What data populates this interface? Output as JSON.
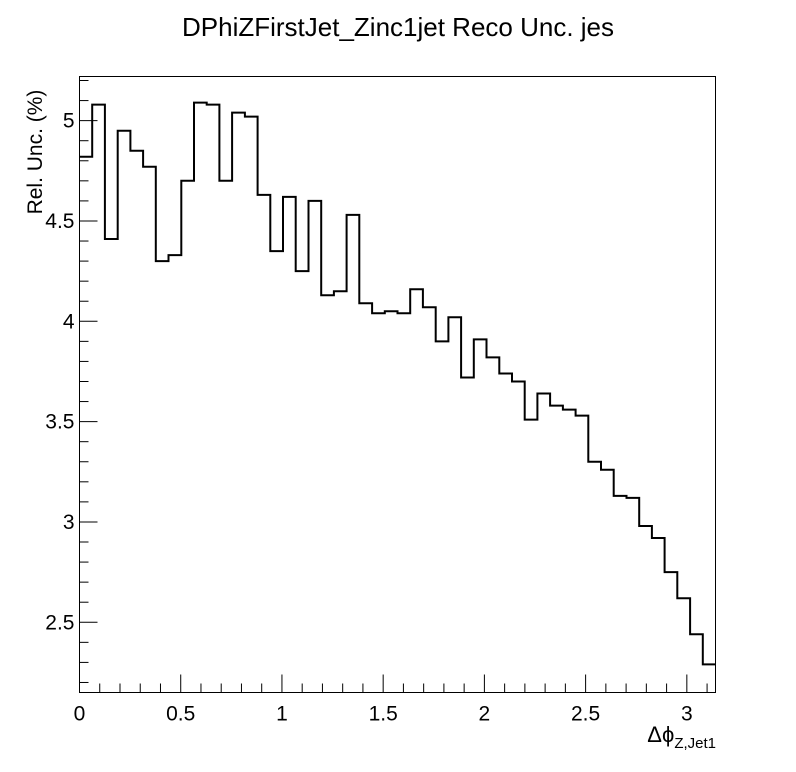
{
  "chart_data": {
    "type": "step-histogram",
    "title": "DPhiZFirstJet_Zinc1jet Reco Unc. jes",
    "xlabel_main": "Δϕ",
    "xlabel_sub": "Z,Jet1",
    "ylabel": "Rel. Unc. (%)",
    "xlim": [
      0,
      3.1416
    ],
    "ylim": [
      2.15,
      5.22
    ],
    "x_ticks": [
      "0",
      "0.5",
      "1",
      "1.5",
      "2",
      "2.5",
      "3"
    ],
    "y_ticks": [
      "2.5",
      "3",
      "3.5",
      "4",
      "4.5",
      "5"
    ],
    "bin_width": 0.0628,
    "values": [
      4.82,
      5.08,
      4.41,
      4.95,
      4.85,
      4.77,
      4.3,
      4.33,
      4.7,
      5.09,
      5.08,
      4.7,
      5.04,
      5.02,
      4.63,
      4.35,
      4.62,
      4.25,
      4.6,
      4.13,
      4.15,
      4.53,
      4.09,
      4.04,
      4.05,
      4.04,
      4.16,
      4.07,
      3.9,
      4.02,
      3.72,
      3.91,
      3.82,
      3.74,
      3.7,
      3.51,
      3.64,
      3.58,
      3.56,
      3.53,
      3.3,
      3.26,
      3.13,
      3.12,
      2.98,
      2.92,
      2.75,
      2.62,
      2.44,
      2.29
    ]
  }
}
